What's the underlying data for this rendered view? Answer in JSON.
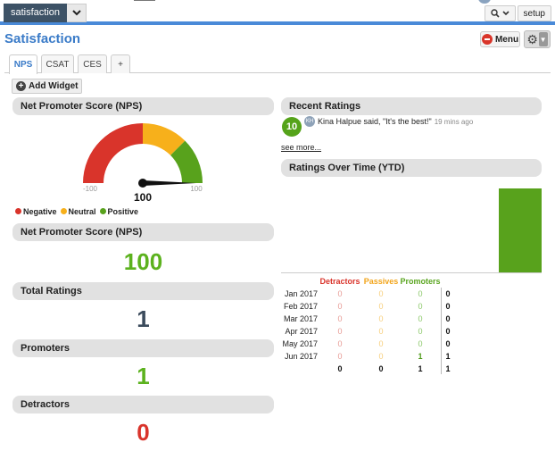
{
  "app": {
    "selector_label": "satisfaction"
  },
  "top_right": {
    "search_icon": "search-icon",
    "setup_label": "setup"
  },
  "page": {
    "title": "Satisfaction",
    "menu_label": "Menu"
  },
  "tabs": [
    {
      "label": "NPS",
      "active": true
    },
    {
      "label": "CSAT",
      "active": false
    },
    {
      "label": "CES",
      "active": false
    },
    {
      "label": "+",
      "active": false
    }
  ],
  "toolbar": {
    "add_widget_label": "Add Widget"
  },
  "widgets": {
    "gauge": {
      "title": "Net Promoter Score (NPS)",
      "min_label": "-100",
      "max_label": "100",
      "value_label": "100",
      "value": 100,
      "colors": {
        "negative": "#d9342b",
        "neutral": "#f7b01b",
        "positive": "#58a21c"
      }
    },
    "legend": [
      {
        "label": "Negative",
        "color": "#d9342b"
      },
      {
        "label": "Neutral",
        "color": "#f7b01b"
      },
      {
        "label": "Positive",
        "color": "#58a21c"
      }
    ],
    "nps_score": {
      "title": "Net Promoter Score (NPS)",
      "value": "100",
      "color": "#5cb21e"
    },
    "total_ratings": {
      "title": "Total Ratings",
      "value": "1",
      "color": "#3b4b5c"
    },
    "promoters": {
      "title": "Promoters",
      "value": "1",
      "color": "#5cb21e"
    },
    "detractors": {
      "title": "Detractors",
      "value": "0",
      "color": "#d9342b"
    },
    "recent": {
      "title": "Recent Ratings",
      "score": "10",
      "avatar_initials": "KH",
      "text": "Kina Halpue said, \"It's the best!\"",
      "time": "19 mins ago",
      "see_more": "see more..."
    },
    "over_time": {
      "title": "Ratings Over Time (YTD)",
      "headers": {
        "detractors": "Detractors",
        "passives": "Passives",
        "promoters": "Promoters"
      },
      "header_colors": {
        "detractors": "#d9342b",
        "passives": "#f2a41a",
        "promoters": "#5aa520"
      }
    }
  },
  "chart_data": {
    "type": "table",
    "title": "Ratings Over Time (YTD)",
    "columns": [
      "Detractors",
      "Passives",
      "Promoters",
      "Total"
    ],
    "rows": [
      {
        "month": "Jan 2017",
        "detractors": "0",
        "passives": "0",
        "promoters": "0",
        "total": "0"
      },
      {
        "month": "Feb 2017",
        "detractors": "0",
        "passives": "0",
        "promoters": "0",
        "total": "0"
      },
      {
        "month": "Mar 2017",
        "detractors": "0",
        "passives": "0",
        "promoters": "0",
        "total": "0"
      },
      {
        "month": "Apr 2017",
        "detractors": "0",
        "passives": "0",
        "promoters": "0",
        "total": "0"
      },
      {
        "month": "May 2017",
        "detractors": "0",
        "passives": "0",
        "promoters": "0",
        "total": "0"
      },
      {
        "month": "Jun 2017",
        "detractors": "0",
        "passives": "0",
        "promoters": "1",
        "total": "1"
      }
    ],
    "totals": {
      "detractors": "0",
      "passives": "0",
      "promoters": "1",
      "total": "1"
    },
    "bar_values": [
      0,
      0,
      0,
      0,
      0,
      1
    ],
    "bar_max": 1
  }
}
